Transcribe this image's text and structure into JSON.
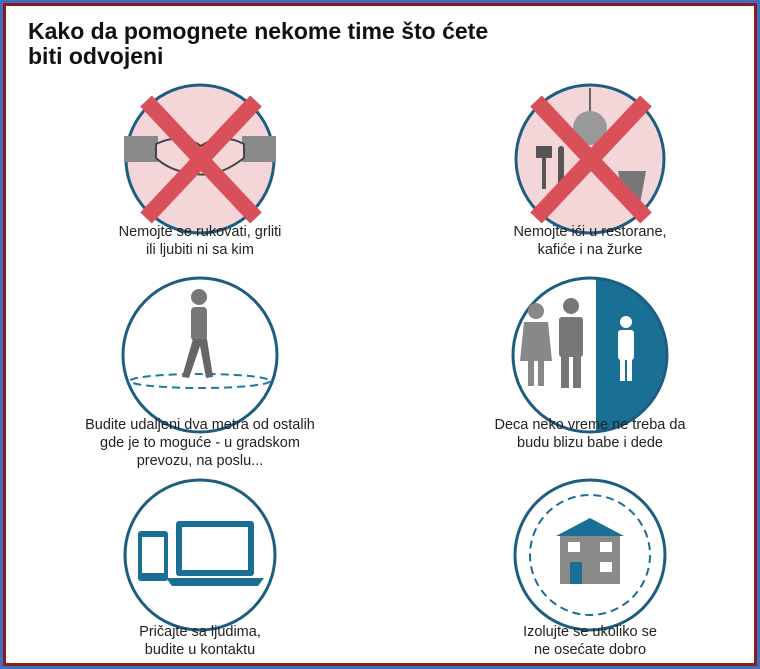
{
  "header": {
    "title_lines": [
      "Kako da pomognete nekome time što ćete",
      "biti odvojeni"
    ]
  },
  "items": [
    {
      "caption_lines": [
        "Nemojte se rukovati, grliti",
        "ili ljubiti ni sa kim"
      ]
    },
    {
      "caption_lines": [
        "Nemojte ići u restorane,",
        "kafiće i na žurke"
      ]
    },
    {
      "caption_lines": [
        "Budite udaljeni dva metra od ostalih",
        "gde je to moguće - u gradskom",
        "prevozu, na poslu..."
      ]
    },
    {
      "caption_lines": [
        "Deca neko vreme ne treba da",
        "budu blizu babe i dede"
      ]
    },
    {
      "caption_lines": [
        "Pričajte sa ljudima,",
        "budite u kontaktu"
      ]
    },
    {
      "caption_lines": [
        "Izolujte se ukoliko se",
        "ne osećate dobro"
      ]
    }
  ]
}
